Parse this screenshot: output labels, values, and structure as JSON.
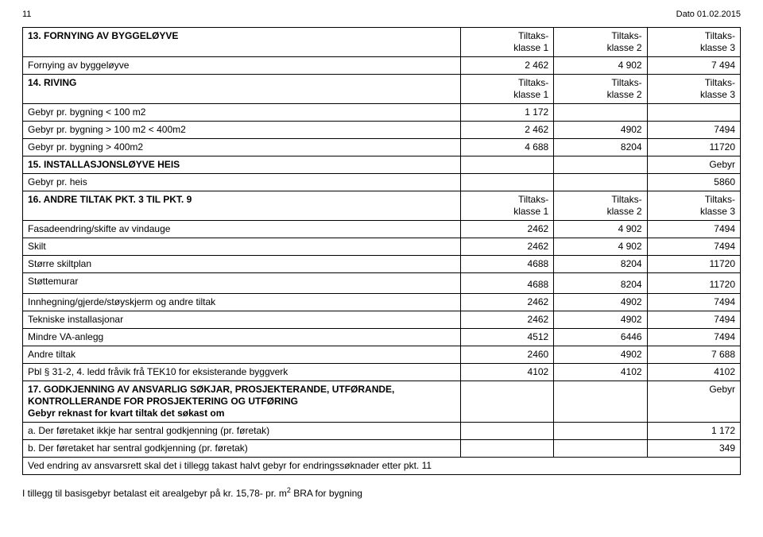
{
  "header": {
    "page": "11",
    "date": "Dato 01.02.2015"
  },
  "col_headers": {
    "c1": "Tiltaks-\nklasse 1",
    "c2": "Tiltaks-\nklasse 2",
    "c3": "Tiltaks-\nklasse 3"
  },
  "s13": {
    "title": "13. FORNYING AV BYGGELØYVE",
    "row1": {
      "label": "Fornying av byggeløyve",
      "v1": "2 462",
      "v2": "4 902",
      "v3": "7 494"
    }
  },
  "s14": {
    "title": "14. RIVING",
    "r1": {
      "label": "Gebyr pr. bygning < 100 m2",
      "v1": "1 172"
    },
    "r2": {
      "label": "Gebyr pr. bygning > 100 m2 < 400m2",
      "v1": "2 462",
      "v2": "4902",
      "v3": "7494"
    },
    "r3": {
      "label": "Gebyr pr. bygning > 400m2",
      "v1": "4 688",
      "v2": "8204",
      "v3": "11720"
    }
  },
  "s15": {
    "title": "15. INSTALLASJONSLØYVE HEIS",
    "gebyr": "Gebyr",
    "r1": {
      "label": "Gebyr pr. heis",
      "v": "5860"
    }
  },
  "s16": {
    "title": "16. ANDRE TILTAK PKT. 3 TIL PKT. 9",
    "r1": {
      "label": "Fasadeendring/skifte av vindauge",
      "v1": "2462",
      "v2": "4 902",
      "v3": "7494"
    },
    "r2": {
      "label": "Skilt",
      "v1": "2462",
      "v2": "4 902",
      "v3": "7494"
    },
    "r3": {
      "label": "Større skiltplan",
      "v1": "4688",
      "v2": "8204",
      "v3": "11720"
    },
    "r4": {
      "label": "Støttemurar",
      "v1": "4688",
      "v2": "8204",
      "v3": "11720"
    },
    "r5": {
      "label": "Innhegning/gjerde/støyskjerm og andre tiltak",
      "v1": "2462",
      "v2": "4902",
      "v3": "7494"
    },
    "r6": {
      "label": "Tekniske installasjonar",
      "v1": "2462",
      "v2": "4902",
      "v3": "7494"
    },
    "r7": {
      "label": "Mindre VA-anlegg",
      "v1": "4512",
      "v2": "6446",
      "v3": "7494"
    },
    "r8": {
      "label": "Andre tiltak",
      "v1": "2460",
      "v2": "4902",
      "v3": "7 688"
    },
    "r9": {
      "label": "Pbl § 31-2, 4. ledd fråvik frå TEK10 for eksisterande byggverk",
      "v1": "4102",
      "v2": "4102",
      "v3": "4102"
    }
  },
  "s17": {
    "title": "17. GODKJENNING AV ANSVARLIG SØKJAR, PROSJEKTERANDE, UTFØRANDE, KONTROLLERANDE FOR PROSJEKTERING OG UTFØRING",
    "sub": "Gebyr reknast for kvart tiltak det søkast om",
    "gebyr": "Gebyr",
    "ra": {
      "label": "a. Der føretaket ikkje har sentral godkjenning (pr. føretak)",
      "v": "1 172"
    },
    "rb": {
      "label": "b. Der føretaket har sentral godkjenning (pr. føretak)",
      "v": "349"
    },
    "rc": {
      "label": "Ved endring av ansvarsrett skal det i tillegg takast halvt gebyr for endringssøknader etter pkt. 11"
    }
  },
  "footer": {
    "text_a": "I tillegg til basisgebyr betalast eit arealgebyr på kr. 15,78- pr. m",
    "text_b": " BRA for bygning"
  }
}
